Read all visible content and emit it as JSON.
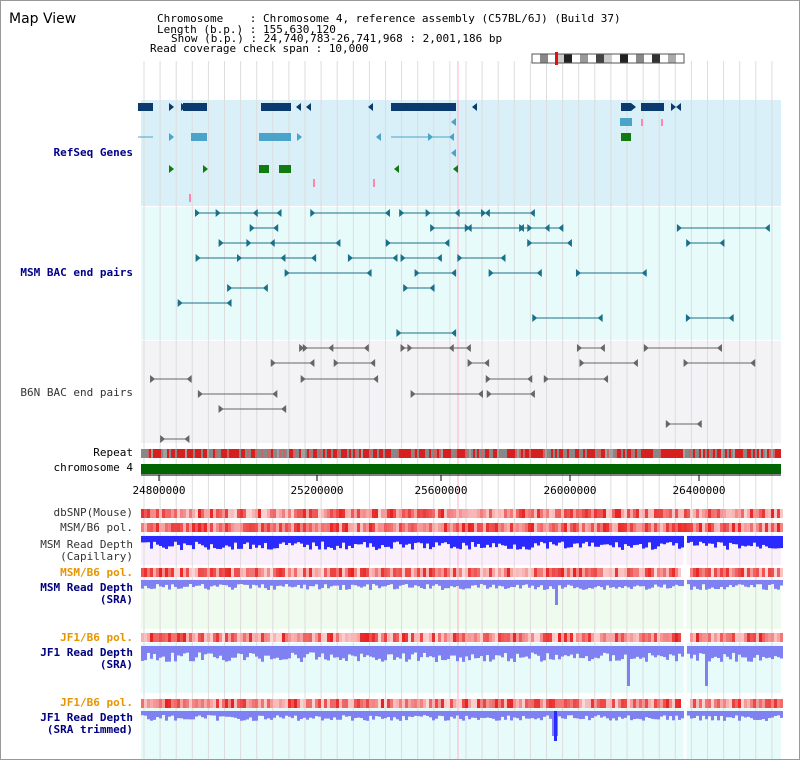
{
  "title": "Map View",
  "info": {
    "chromosome_label": "Chromosome    : ",
    "chromosome_value": "Chromosome 4, reference assembly (C57BL/6J) (Build 37)",
    "length_label": "Length (b.p.) : ",
    "length_value": "155,630,120",
    "show_label": "Show (b.p.) : ",
    "show_value": "24,740,783-26,741,968 : 2,001,186 bp",
    "coverage_label": "Read coverage check span : ",
    "coverage_value": "10,000"
  },
  "tracks": {
    "refseq": "RefSeq Genes",
    "msm_bac": "MSM BAC end pairs",
    "b6n_bac": "B6N BAC end pairs",
    "repeat": "Repeat",
    "chromosome": "chromosome 4",
    "dbsnp": "dbSNP(Mouse)",
    "msm_b6_pol_1": "MSM/B6 pol.",
    "msm_depth_cap_1": "MSM Read Depth",
    "msm_depth_cap_2": "(Capillary)",
    "msm_b6_pol_2": "MSM/B6 pol.",
    "msm_depth_sra_1": "MSM Read Depth",
    "msm_depth_sra_2": "(SRA)",
    "jf1_b6_pol_1": "JF1/B6 pol.",
    "jf1_depth_sra_1": "JF1 Read Depth",
    "jf1_depth_sra_2": "(SRA)",
    "jf1_b6_pol_2": "JF1/B6 pol.",
    "jf1_depth_trim_1": "JF1 Read Depth",
    "jf1_depth_trim_2": "(SRA trimmed)"
  },
  "axis_ticks": [
    "24800000",
    "25200000",
    "25600000",
    "26000000",
    "26400000"
  ],
  "colors": {
    "refseq_bg": "#d9f0f9",
    "msm_bac_bg": "#e8fbfb",
    "b6n_bac_bg": "#f3f3f6",
    "chromosome": "#006400",
    "refseq_dark": "#0a3a6e",
    "refseq_light": "#4aa3c8",
    "refseq_green": "#117a11",
    "msm_line": "#1a6f8a",
    "b6n_line": "#666666",
    "depth_blue": "#2a2aff",
    "depth_lavender": "#7f80f2",
    "pol_red": "#e22020",
    "pink": "#ff88aa"
  }
}
